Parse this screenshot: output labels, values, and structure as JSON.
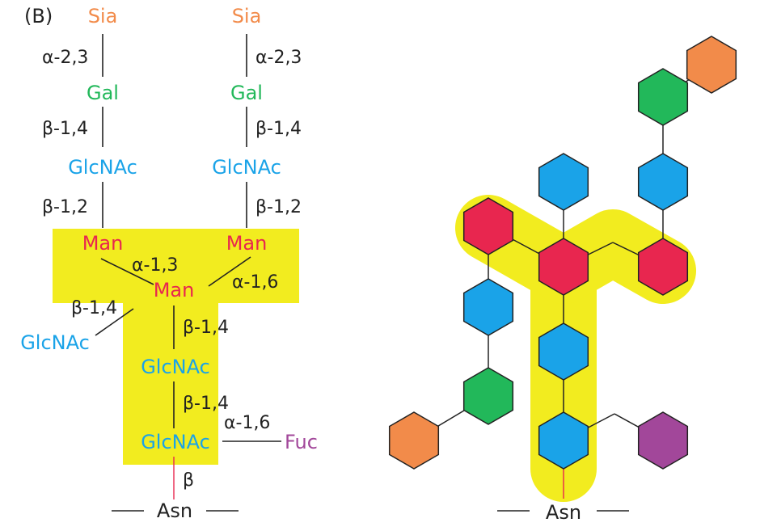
{
  "panel_label": "(B)",
  "colors": {
    "sia": "#F28B4A",
    "gal": "#22B85A",
    "glcnac": "#1AA3E8",
    "man": "#E8264F",
    "fuc": "#A2479A",
    "highlight": "#F2EC1F",
    "line": "#222222",
    "asn_line": "#E8264F"
  },
  "left": {
    "sugars": {
      "sia_left": "Sia",
      "sia_right": "Sia",
      "gal_left": "Gal",
      "gal_right": "Gal",
      "glcnac_left": "GlcNAc",
      "glcnac_right": "GlcNAc",
      "man_left": "Man",
      "man_right": "Man",
      "man_center": "Man",
      "glcnac_bisect": "GlcNAc",
      "glcnac_core1": "GlcNAc",
      "glcnac_core2": "GlcNAc",
      "fuc": "Fuc"
    },
    "linkages": {
      "sia_gal_left": "α-2,3",
      "sia_gal_right": "α-2,3",
      "gal_glcnac_left": "β-1,4",
      "gal_glcnac_right": "β-1,4",
      "glcnac_man_left": "β-1,2",
      "glcnac_man_right": "β-1,2",
      "man_man_left": "α-1,3",
      "man_man_right": "α-1,6",
      "bisect": "β-1,4",
      "man_core": "β-1,4",
      "core_core": "β-1,4",
      "fuc_link": "α-1,6",
      "asn_link": "β"
    },
    "asn": "Asn"
  },
  "right": {
    "asn": "Asn"
  }
}
